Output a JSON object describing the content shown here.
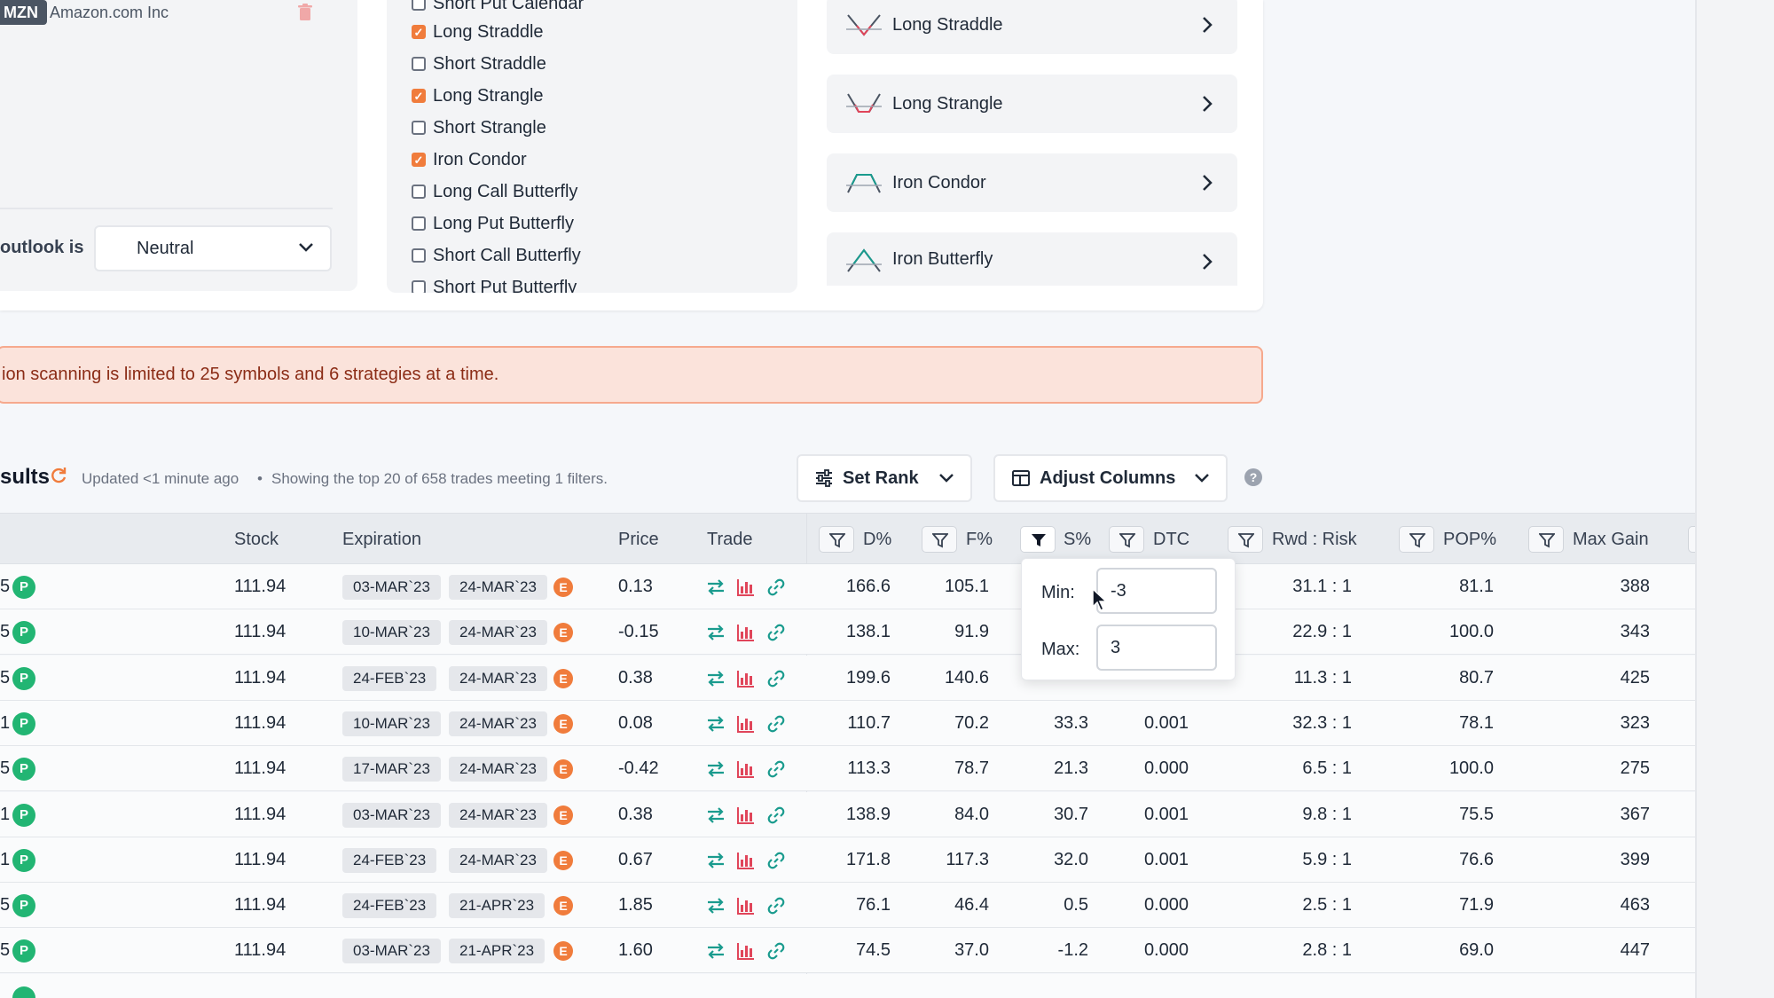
{
  "symbol": {
    "ticker": "MZN",
    "name": "Amazon.com Inc"
  },
  "outlook": {
    "label": "outlook is",
    "value": "Neutral"
  },
  "strategy_list": [
    {
      "label": "Short Put Calendar",
      "checked": false
    },
    {
      "label": "Long Straddle",
      "checked": true
    },
    {
      "label": "Short Straddle",
      "checked": false
    },
    {
      "label": "Long Strangle",
      "checked": true
    },
    {
      "label": "Short Strangle",
      "checked": false
    },
    {
      "label": "Iron Condor",
      "checked": true
    },
    {
      "label": "Long Call Butterfly",
      "checked": false
    },
    {
      "label": "Long Put Butterfly",
      "checked": false
    },
    {
      "label": "Short Call Butterfly",
      "checked": false
    },
    {
      "label": "Short Put Butterfly",
      "checked": false
    }
  ],
  "strategy_cards": [
    {
      "label": "Long Straddle",
      "icon": "long-straddle-icon"
    },
    {
      "label": "Long Strangle",
      "icon": "long-strangle-icon"
    },
    {
      "label": "Iron Condor",
      "icon": "iron-condor-icon"
    },
    {
      "label": "Iron Butterfly",
      "icon": "iron-butterfly-icon"
    }
  ],
  "alert": {
    "text": "ion scanning is limited to 25 symbols and 6 strategies at a time."
  },
  "results": {
    "title": "sults",
    "updated": "Updated <1 minute ago",
    "separator": "•",
    "showing": "Showing the top 20 of 658 trades meeting 1 filters.",
    "set_rank_label": "Set Rank",
    "adjust_columns_label": "Adjust Columns",
    "help": "?"
  },
  "columns": {
    "stock": "Stock",
    "expiration": "Expiration",
    "price": "Price",
    "trade": "Trade",
    "d_pct": "D%",
    "f_pct": "F%",
    "s_pct": "S%",
    "dtc": "DTC",
    "rwd_risk": "Rwd : Risk",
    "pop_pct": "POP%",
    "max_gain": "Max Gain"
  },
  "filter_popover": {
    "min_label": "Min:",
    "min_value": "-3",
    "max_label": "Max:",
    "max_value": "3"
  },
  "rows": [
    {
      "rank": "5",
      "badge": "P",
      "stock": "111.94",
      "exp1": "03-MAR`23",
      "exp2": "24-MAR`23",
      "e": "E",
      "price": "0.13",
      "d": "166.6",
      "f": "105.1",
      "s": "",
      "dtc": "",
      "rr": "31.1 : 1",
      "pop": "81.1",
      "max": "388"
    },
    {
      "rank": "5",
      "badge": "P",
      "stock": "111.94",
      "exp1": "10-MAR`23",
      "exp2": "24-MAR`23",
      "e": "E",
      "price": "-0.15",
      "d": "138.1",
      "f": "91.9",
      "s": "",
      "dtc": "",
      "rr": "22.9 : 1",
      "pop": "100.0",
      "max": "343"
    },
    {
      "rank": "5",
      "badge": "P",
      "stock": "111.94",
      "exp1": "24-FEB`23",
      "exp2": "24-MAR`23",
      "e": "E",
      "price": "0.38",
      "d": "199.6",
      "f": "140.6",
      "s": "",
      "dtc": "",
      "rr": "11.3 : 1",
      "pop": "80.7",
      "max": "425"
    },
    {
      "rank": "1",
      "badge": "P",
      "stock": "111.94",
      "exp1": "10-MAR`23",
      "exp2": "24-MAR`23",
      "e": "E",
      "price": "0.08",
      "d": "110.7",
      "f": "70.2",
      "s": "33.3",
      "dtc": "0.001",
      "rr": "32.3 : 1",
      "pop": "78.1",
      "max": "323"
    },
    {
      "rank": "5",
      "badge": "P",
      "stock": "111.94",
      "exp1": "17-MAR`23",
      "exp2": "24-MAR`23",
      "e": "E",
      "price": "-0.42",
      "d": "113.3",
      "f": "78.7",
      "s": "21.3",
      "dtc": "0.000",
      "rr": "6.5 : 1",
      "pop": "100.0",
      "max": "275"
    },
    {
      "rank": "1",
      "badge": "P",
      "stock": "111.94",
      "exp1": "03-MAR`23",
      "exp2": "24-MAR`23",
      "e": "E",
      "price": "0.38",
      "d": "138.9",
      "f": "84.0",
      "s": "30.7",
      "dtc": "0.001",
      "rr": "9.8 : 1",
      "pop": "75.5",
      "max": "367"
    },
    {
      "rank": "1",
      "badge": "P",
      "stock": "111.94",
      "exp1": "24-FEB`23",
      "exp2": "24-MAR`23",
      "e": "E",
      "price": "0.67",
      "d": "171.8",
      "f": "117.3",
      "s": "32.0",
      "dtc": "0.001",
      "rr": "5.9 : 1",
      "pop": "76.6",
      "max": "399"
    },
    {
      "rank": "5",
      "badge": "P",
      "stock": "111.94",
      "exp1": "24-FEB`23",
      "exp2": "21-APR`23",
      "e": "E",
      "price": "1.85",
      "d": "76.1",
      "f": "46.4",
      "s": "0.5",
      "dtc": "0.000",
      "rr": "2.5 : 1",
      "pop": "71.9",
      "max": "463"
    },
    {
      "rank": "5",
      "badge": "P",
      "stock": "111.94",
      "exp1": "03-MAR`23",
      "exp2": "21-APR`23",
      "e": "E",
      "price": "1.60",
      "d": "74.5",
      "f": "37.0",
      "s": "-1.2",
      "dtc": "0.000",
      "rr": "2.8 : 1",
      "pop": "69.0",
      "max": "447"
    }
  ],
  "colors": {
    "accent": "#f07c3c",
    "badge_green": "#22b573",
    "link_teal": "#1a9b8e",
    "chart_red": "#e0455a",
    "alert_bg": "#fbe3db"
  }
}
